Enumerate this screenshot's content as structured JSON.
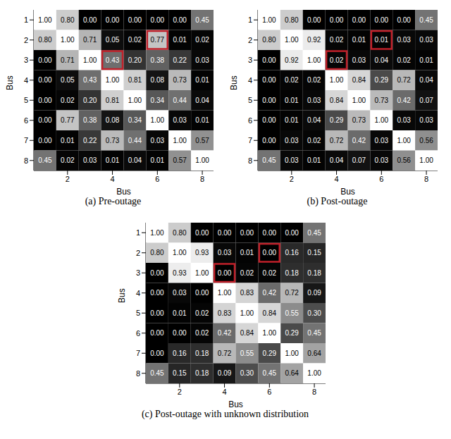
{
  "chart_data": [
    {
      "type": "heatmap",
      "title": "(a) Pre-outage",
      "x_label": "Bus",
      "y_label": "Bus",
      "xlim": [
        0.5,
        8.5
      ],
      "ylim": [
        0.5,
        8.5
      ],
      "xticks": [
        2,
        4,
        6,
        8
      ],
      "yticks": [
        1,
        2,
        3,
        4,
        5,
        6,
        7,
        8
      ],
      "data_labels": true,
      "highlight": {
        "cells": [
          [
            2,
            6
          ],
          [
            3,
            4
          ]
        ],
        "color": "#c0202a"
      },
      "cells": [
        [
          1.0,
          0.8,
          0.0,
          0.0,
          0.0,
          0.0,
          0.0,
          0.45
        ],
        [
          0.8,
          1.0,
          0.71,
          0.05,
          0.02,
          0.77,
          0.01,
          0.02
        ],
        [
          0.0,
          0.71,
          1.0,
          0.43,
          0.2,
          0.38,
          0.22,
          0.03
        ],
        [
          0.0,
          0.05,
          0.43,
          1.0,
          0.81,
          0.08,
          0.73,
          0.01
        ],
        [
          0.0,
          0.02,
          0.2,
          0.81,
          1.0,
          0.34,
          0.44,
          0.04
        ],
        [
          0.0,
          0.77,
          0.38,
          0.08,
          0.34,
          1.0,
          0.03,
          0.01
        ],
        [
          0.0,
          0.01,
          0.22,
          0.73,
          0.44,
          0.03,
          1.0,
          0.57
        ],
        [
          0.45,
          0.02,
          0.03,
          0.01,
          0.04,
          0.01,
          0.57,
          1.0
        ]
      ],
      "value_labels": [
        [
          "1.00",
          "0.80",
          "0.00",
          "0.00",
          "0.00",
          "0.00",
          "0.00",
          "0.45"
        ],
        [
          "0.80",
          "1.00",
          "0.71",
          "0.05",
          "0.02",
          "0.77",
          "0.01",
          "0.02"
        ],
        [
          "0.00",
          "0.71",
          "1.00",
          "0.43",
          "0.20",
          "0.38",
          "0.22",
          "0.03"
        ],
        [
          "0.00",
          "0.05",
          "0.43",
          "1.00",
          "0.81",
          "0.08",
          "0.73",
          "0.01"
        ],
        [
          "0.00",
          "0.02",
          "0.20",
          "0.81",
          "1.00",
          "0.34",
          "0.44",
          "0.04"
        ],
        [
          "0.00",
          "0.77",
          "0.38",
          "0.08",
          "0.34",
          "1.00",
          "0.03",
          "0.01"
        ],
        [
          "0.00",
          "0.01",
          "0.22",
          "0.73",
          "0.44",
          "0.03",
          "1.00",
          "0.57"
        ],
        [
          "0.45",
          "0.02",
          "0.03",
          "0.01",
          "0.04",
          "0.01",
          "0.57",
          "1.00"
        ]
      ]
    },
    {
      "type": "heatmap",
      "title": "(b) Post-outage",
      "x_label": "Bus",
      "y_label": "Bus",
      "xlim": [
        0.5,
        8.5
      ],
      "ylim": [
        0.5,
        8.5
      ],
      "xticks": [
        2,
        4,
        6,
        8
      ],
      "yticks": [
        1,
        2,
        3,
        4,
        5,
        6,
        7,
        8
      ],
      "data_labels": true,
      "highlight": {
        "cells": [
          [
            2,
            6
          ],
          [
            3,
            4
          ]
        ],
        "color": "#c0202a"
      },
      "cells": [
        [
          1.0,
          0.8,
          0.0,
          0.0,
          0.0,
          0.0,
          0.0,
          0.45
        ],
        [
          0.8,
          1.0,
          0.92,
          0.02,
          0.01,
          0.01,
          0.03,
          0.03
        ],
        [
          0.0,
          0.92,
          1.0,
          0.02,
          0.03,
          0.04,
          0.02,
          0.01
        ],
        [
          0.0,
          0.02,
          0.02,
          1.0,
          0.84,
          0.29,
          0.72,
          0.04
        ],
        [
          0.0,
          0.01,
          0.03,
          0.84,
          1.0,
          0.73,
          0.42,
          0.07
        ],
        [
          0.0,
          0.01,
          0.04,
          0.29,
          0.73,
          1.0,
          0.03,
          0.03
        ],
        [
          0.0,
          0.03,
          0.02,
          0.72,
          0.42,
          0.03,
          1.0,
          0.56
        ],
        [
          0.45,
          0.03,
          0.01,
          0.04,
          0.07,
          0.03,
          0.56,
          1.0
        ]
      ],
      "value_labels": [
        [
          "1.00",
          "0.80",
          "0.00",
          "0.00",
          "0.00",
          "0.00",
          "0.00",
          "0.45"
        ],
        [
          "0.80",
          "1.00",
          "0.92",
          "0.02",
          "0.01",
          "0.01",
          "0.03",
          "0.03"
        ],
        [
          "0.00",
          "0.92",
          "1.00",
          "0.02",
          "0.03",
          "0.04",
          "0.02",
          "0.01"
        ],
        [
          "0.00",
          "0.02",
          "0.02",
          "1.00",
          "0.84",
          "0.29",
          "0.72",
          "0.04"
        ],
        [
          "0.00",
          "0.01",
          "0.03",
          "0.84",
          "1.00",
          "0.73",
          "0.42",
          "0.07"
        ],
        [
          "0.00",
          "0.01",
          "0.04",
          "0.29",
          "0.73",
          "1.00",
          "0.03",
          "0.03"
        ],
        [
          "0.00",
          "0.03",
          "0.02",
          "0.72",
          "0.42",
          "0.03",
          "1.00",
          "0.56"
        ],
        [
          "0.45",
          "0.03",
          "0.01",
          "0.04",
          "0.07",
          "0.03",
          "0.56",
          "1.00"
        ]
      ]
    },
    {
      "type": "heatmap",
      "title": "(c) Post-outage with unknown distribution",
      "x_label": "Bus",
      "y_label": "Bus",
      "xlim": [
        0.5,
        8.5
      ],
      "ylim": [
        0.5,
        8.5
      ],
      "xticks": [
        2,
        4,
        6,
        8
      ],
      "yticks": [
        1,
        2,
        3,
        4,
        5,
        6,
        7,
        8
      ],
      "data_labels": true,
      "highlight": {
        "cells": [
          [
            2,
            6
          ],
          [
            3,
            4
          ]
        ],
        "color": "#c0202a"
      },
      "cells": [
        [
          1.0,
          0.8,
          0.0,
          0.0,
          0.0,
          0.0,
          0.0,
          0.45
        ],
        [
          0.8,
          1.0,
          0.93,
          0.03,
          0.01,
          0.0,
          0.16,
          0.15
        ],
        [
          0.0,
          0.93,
          1.0,
          0.0,
          0.02,
          0.02,
          0.18,
          0.18
        ],
        [
          0.0,
          0.03,
          0.0,
          1.0,
          0.83,
          0.42,
          0.72,
          0.09
        ],
        [
          0.0,
          0.01,
          0.02,
          0.83,
          1.0,
          0.84,
          0.55,
          0.3
        ],
        [
          0.0,
          0.0,
          0.02,
          0.42,
          0.84,
          1.0,
          0.29,
          0.45
        ],
        [
          0.0,
          0.16,
          0.18,
          0.72,
          0.55,
          0.29,
          1.0,
          0.64
        ],
        [
          0.45,
          0.15,
          0.18,
          0.09,
          0.3,
          0.45,
          0.64,
          1.0
        ]
      ],
      "value_labels": [
        [
          "1.00",
          "0.80",
          "0.00",
          "0.00",
          "0.00",
          "0.00",
          "0.00",
          "0.45"
        ],
        [
          "0.80",
          "1.00",
          "0.93",
          "0.03",
          "0.01",
          "0.00",
          "0.16",
          "0.15"
        ],
        [
          "0.00",
          "0.93",
          "1.00",
          "0.00",
          "0.02",
          "0.02",
          "0.18",
          "0.18"
        ],
        [
          "0.00",
          "0.03",
          "0.00",
          "1.00",
          "0.83",
          "0.42",
          "0.72",
          "0.09"
        ],
        [
          "0.00",
          "0.01",
          "0.02",
          "0.83",
          "1.00",
          "0.84",
          "0.55",
          "0.30"
        ],
        [
          "0.00",
          "0.00",
          "0.02",
          "0.42",
          "0.84",
          "1.00",
          "0.29",
          "0.45"
        ],
        [
          "0.00",
          "0.16",
          "0.18",
          "0.72",
          "0.55",
          "0.29",
          "1.00",
          "0.64"
        ],
        [
          "0.45",
          "0.15",
          "0.18",
          "0.09",
          "0.30",
          "0.45",
          "0.64",
          "1.00"
        ]
      ]
    }
  ]
}
